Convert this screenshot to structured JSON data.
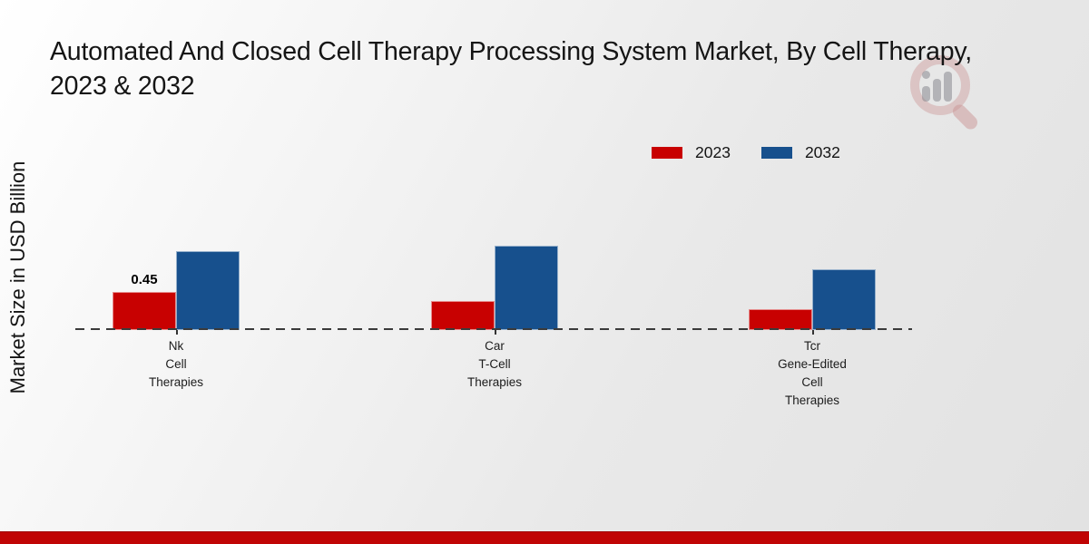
{
  "header": {
    "title": "Automated And Closed Cell Therapy Processing System Market, By Cell Therapy, 2023 & 2032"
  },
  "axes": {
    "y_label": "Market Size in USD Billion"
  },
  "legend": {
    "items": [
      {
        "label": "2023",
        "color": "#c80101"
      },
      {
        "label": "2032",
        "color": "#17508d"
      }
    ]
  },
  "chart_data": {
    "type": "bar",
    "title": "Automated And Closed Cell Therapy Processing System Market, By Cell Therapy, 2023 & 2032",
    "categories": [
      [
        "Nk",
        "Cell",
        "Therapies"
      ],
      [
        "Car",
        "T-Cell",
        "Therapies"
      ],
      [
        "Tcr",
        "Gene-Edited",
        "Cell",
        "Therapies"
      ]
    ],
    "series": [
      {
        "name": "2023",
        "color": "#c80101",
        "values": [
          0.45,
          0.34,
          0.25
        ]
      },
      {
        "name": "2032",
        "color": "#17508d",
        "values": [
          0.94,
          1.0,
          0.72
        ]
      }
    ],
    "data_labels": [
      {
        "series": "2023",
        "category_index": 0,
        "text": "0.45"
      }
    ],
    "xlabel": "",
    "ylabel": "Market Size in USD Billion",
    "ylim": [
      0,
      1.1
    ],
    "grid": false,
    "legend_position": "top-right",
    "baseline_style": "dashed-horizontal-at-zero"
  },
  "icons": {
    "watermark": "magnifier-bar-chart-logo"
  },
  "footer": {
    "accent_color": "#c00404"
  },
  "colors": {
    "background": "#e9e9e9",
    "baseline": "#3a3a3a",
    "text": "#151515"
  }
}
